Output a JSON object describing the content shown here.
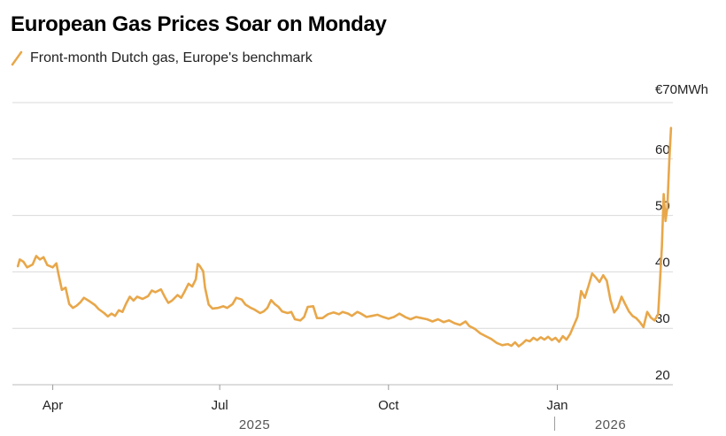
{
  "header": {
    "title": "European Gas Prices Soar on Monday"
  },
  "legend": {
    "label": "Front-month Dutch gas, Europe's benchmark"
  },
  "colors": {
    "series": "#e8a74a",
    "grid": "#d9d9d9",
    "axis": "#bbbbbb",
    "text": "#222222"
  },
  "chart_data": {
    "type": "line",
    "title": "European Gas Prices Soar on Monday",
    "y_unit_label": "€70MWh",
    "ylim": [
      20,
      70
    ],
    "y_ticks": [
      20,
      30,
      40,
      50,
      60,
      70
    ],
    "y_tick_labels": [
      "20",
      "30",
      "40",
      "50",
      "60",
      "€70MWh"
    ],
    "x_range": [
      "2025-03-10",
      "2026-03-05"
    ],
    "x_ticks": [
      {
        "date": "2025-04-01",
        "label": "Apr"
      },
      {
        "date": "2025-07-01",
        "label": "Jul"
      },
      {
        "date": "2025-10-01",
        "label": "Oct"
      },
      {
        "date": "2026-01-01",
        "label": "Jan"
      }
    ],
    "year_labels": [
      {
        "date": "2025-07-20",
        "label": "2025"
      },
      {
        "date": "2026-01-30",
        "label": "2026"
      }
    ],
    "year_divider_date": "2026-01-01",
    "grid": true,
    "legend_position": "top-left",
    "series": [
      {
        "name": "Front-month Dutch gas, Europe's benchmark",
        "points": [
          [
            "2025-03-13",
            41.0
          ],
          [
            "2025-03-14",
            42.2
          ],
          [
            "2025-03-16",
            41.8
          ],
          [
            "2025-03-18",
            40.8
          ],
          [
            "2025-03-21",
            41.3
          ],
          [
            "2025-03-23",
            42.8
          ],
          [
            "2025-03-25",
            42.2
          ],
          [
            "2025-03-27",
            42.6
          ],
          [
            "2025-03-29",
            41.2
          ],
          [
            "2025-04-01",
            40.8
          ],
          [
            "2025-04-03",
            41.5
          ],
          [
            "2025-04-04",
            39.8
          ],
          [
            "2025-04-06",
            36.8
          ],
          [
            "2025-04-08",
            37.2
          ],
          [
            "2025-04-10",
            34.3
          ],
          [
            "2025-04-12",
            33.6
          ],
          [
            "2025-04-14",
            34.0
          ],
          [
            "2025-04-16",
            34.6
          ],
          [
            "2025-04-18",
            35.4
          ],
          [
            "2025-04-21",
            34.8
          ],
          [
            "2025-04-24",
            34.1
          ],
          [
            "2025-04-26",
            33.4
          ],
          [
            "2025-04-29",
            32.7
          ],
          [
            "2025-05-01",
            32.1
          ],
          [
            "2025-05-03",
            32.6
          ],
          [
            "2025-05-05",
            32.2
          ],
          [
            "2025-05-07",
            33.2
          ],
          [
            "2025-05-09",
            32.9
          ],
          [
            "2025-05-11",
            34.4
          ],
          [
            "2025-05-13",
            35.6
          ],
          [
            "2025-05-15",
            34.9
          ],
          [
            "2025-05-17",
            35.6
          ],
          [
            "2025-05-20",
            35.2
          ],
          [
            "2025-05-23",
            35.7
          ],
          [
            "2025-05-25",
            36.7
          ],
          [
            "2025-05-27",
            36.4
          ],
          [
            "2025-05-30",
            36.9
          ],
          [
            "2025-06-01",
            35.6
          ],
          [
            "2025-06-03",
            34.5
          ],
          [
            "2025-06-05",
            34.9
          ],
          [
            "2025-06-08",
            35.9
          ],
          [
            "2025-06-10",
            35.4
          ],
          [
            "2025-06-12",
            36.6
          ],
          [
            "2025-06-14",
            37.9
          ],
          [
            "2025-06-16",
            37.4
          ],
          [
            "2025-06-18",
            38.7
          ],
          [
            "2025-06-19",
            41.4
          ],
          [
            "2025-06-20",
            41.1
          ],
          [
            "2025-06-22",
            40.1
          ],
          [
            "2025-06-23",
            37.2
          ],
          [
            "2025-06-25",
            34.2
          ],
          [
            "2025-06-27",
            33.5
          ],
          [
            "2025-06-30",
            33.6
          ],
          [
            "2025-07-03",
            33.9
          ],
          [
            "2025-07-05",
            33.6
          ],
          [
            "2025-07-08",
            34.3
          ],
          [
            "2025-07-10",
            35.4
          ],
          [
            "2025-07-13",
            35.1
          ],
          [
            "2025-07-15",
            34.2
          ],
          [
            "2025-07-18",
            33.6
          ],
          [
            "2025-07-20",
            33.3
          ],
          [
            "2025-07-23",
            32.7
          ],
          [
            "2025-07-25",
            33.0
          ],
          [
            "2025-07-27",
            33.6
          ],
          [
            "2025-07-29",
            35.0
          ],
          [
            "2025-07-31",
            34.3
          ],
          [
            "2025-08-02",
            33.8
          ],
          [
            "2025-08-04",
            33.0
          ],
          [
            "2025-08-07",
            32.7
          ],
          [
            "2025-08-09",
            32.9
          ],
          [
            "2025-08-11",
            31.6
          ],
          [
            "2025-08-14",
            31.4
          ],
          [
            "2025-08-16",
            32.0
          ],
          [
            "2025-08-18",
            33.8
          ],
          [
            "2025-08-21",
            33.9
          ],
          [
            "2025-08-23",
            31.8
          ],
          [
            "2025-08-26",
            31.8
          ],
          [
            "2025-08-29",
            32.5
          ],
          [
            "2025-09-01",
            32.8
          ],
          [
            "2025-09-04",
            32.5
          ],
          [
            "2025-09-06",
            32.9
          ],
          [
            "2025-09-09",
            32.6
          ],
          [
            "2025-09-11",
            32.2
          ],
          [
            "2025-09-14",
            32.9
          ],
          [
            "2025-09-16",
            32.6
          ],
          [
            "2025-09-19",
            32.0
          ],
          [
            "2025-09-22",
            32.2
          ],
          [
            "2025-09-25",
            32.4
          ],
          [
            "2025-09-28",
            32.0
          ],
          [
            "2025-10-01",
            31.7
          ],
          [
            "2025-10-04",
            32.0
          ],
          [
            "2025-10-07",
            32.6
          ],
          [
            "2025-10-10",
            32.0
          ],
          [
            "2025-10-13",
            31.6
          ],
          [
            "2025-10-16",
            32.0
          ],
          [
            "2025-10-19",
            31.8
          ],
          [
            "2025-10-22",
            31.6
          ],
          [
            "2025-10-25",
            31.2
          ],
          [
            "2025-10-28",
            31.6
          ],
          [
            "2025-10-31",
            31.1
          ],
          [
            "2025-11-03",
            31.4
          ],
          [
            "2025-11-06",
            30.9
          ],
          [
            "2025-11-09",
            30.6
          ],
          [
            "2025-11-12",
            31.2
          ],
          [
            "2025-11-14",
            30.4
          ],
          [
            "2025-11-17",
            29.9
          ],
          [
            "2025-11-20",
            29.1
          ],
          [
            "2025-11-23",
            28.6
          ],
          [
            "2025-11-26",
            28.1
          ],
          [
            "2025-11-29",
            27.4
          ],
          [
            "2025-12-02",
            27.0
          ],
          [
            "2025-12-05",
            27.2
          ],
          [
            "2025-12-07",
            26.9
          ],
          [
            "2025-12-09",
            27.5
          ],
          [
            "2025-12-11",
            26.8
          ],
          [
            "2025-12-13",
            27.3
          ],
          [
            "2025-12-15",
            27.9
          ],
          [
            "2025-12-17",
            27.7
          ],
          [
            "2025-12-19",
            28.3
          ],
          [
            "2025-12-21",
            27.9
          ],
          [
            "2025-12-23",
            28.4
          ],
          [
            "2025-12-25",
            28.0
          ],
          [
            "2025-12-27",
            28.5
          ],
          [
            "2025-12-29",
            27.9
          ],
          [
            "2025-12-31",
            28.3
          ],
          [
            "2026-01-02",
            27.6
          ],
          [
            "2026-01-04",
            28.6
          ],
          [
            "2026-01-06",
            28.0
          ],
          [
            "2026-01-08",
            29.0
          ],
          [
            "2026-01-10",
            30.5
          ],
          [
            "2026-01-12",
            32.0
          ],
          [
            "2026-01-14",
            36.6
          ],
          [
            "2026-01-16",
            35.4
          ],
          [
            "2026-01-18",
            37.5
          ],
          [
            "2026-01-20",
            39.7
          ],
          [
            "2026-01-22",
            39.0
          ],
          [
            "2026-01-24",
            38.2
          ],
          [
            "2026-01-26",
            39.4
          ],
          [
            "2026-01-28",
            38.4
          ],
          [
            "2026-01-30",
            35.0
          ],
          [
            "2026-02-01",
            32.8
          ],
          [
            "2026-02-03",
            33.6
          ],
          [
            "2026-02-05",
            35.6
          ],
          [
            "2026-02-07",
            34.3
          ],
          [
            "2026-02-09",
            33.0
          ],
          [
            "2026-02-11",
            32.2
          ],
          [
            "2026-02-13",
            31.8
          ],
          [
            "2026-02-15",
            31.1
          ],
          [
            "2026-02-17",
            30.2
          ],
          [
            "2026-02-19",
            32.9
          ],
          [
            "2026-02-21",
            31.9
          ],
          [
            "2026-02-23",
            31.4
          ],
          [
            "2026-02-25",
            32.5
          ],
          [
            "2026-02-27",
            44.5
          ],
          [
            "2026-02-28",
            53.8
          ],
          [
            "2026-03-01",
            49.0
          ],
          [
            "2026-03-02",
            51.5
          ],
          [
            "2026-03-03",
            59.5
          ],
          [
            "2026-03-04",
            65.5
          ]
        ]
      }
    ]
  }
}
